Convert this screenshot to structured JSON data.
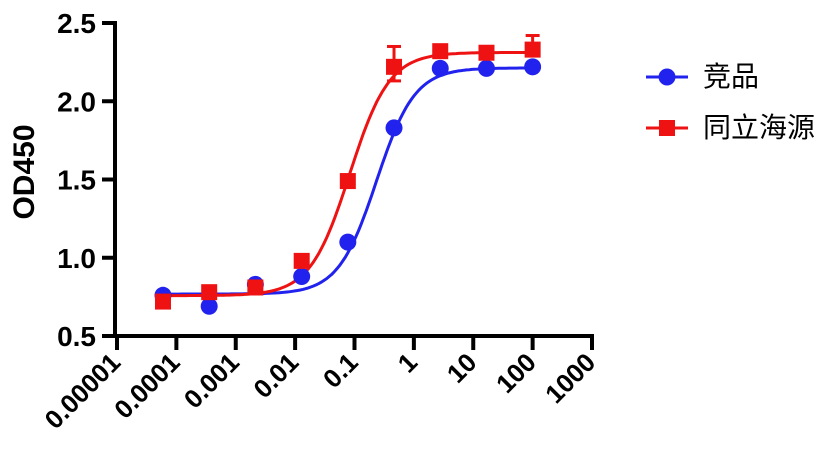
{
  "chart_data": {
    "type": "scatter",
    "title": "",
    "ylabel": "OD450",
    "xlabel": "",
    "x_scale": "log10",
    "xlim": [
      1e-05,
      1000
    ],
    "ylim": [
      0.5,
      2.5
    ],
    "grid": false,
    "legend_position": "right-outside",
    "x_tick_labels": [
      "0.00001",
      "0.0001",
      "0.001",
      "0.01",
      "0.1",
      "1",
      "10",
      "100",
      "1000"
    ],
    "x_tick_values": [
      1e-05,
      0.0001,
      0.001,
      0.01,
      0.1,
      1,
      10,
      100,
      1000
    ],
    "y_tick_labels": [
      "0.5",
      "1.0",
      "1.5",
      "2.0",
      "2.5"
    ],
    "y_tick_values": [
      0.5,
      1.0,
      1.5,
      2.0,
      2.5
    ],
    "x": [
      5.95e-05,
      0.000357,
      0.00214,
      0.0129,
      0.0772,
      0.463,
      2.78,
      16.7,
      100
    ],
    "series": [
      {
        "name": "竞品",
        "color": "#2222ee",
        "marker": "circle",
        "values": [
          0.76,
          0.69,
          0.83,
          0.88,
          1.1,
          1.83,
          2.21,
          2.21,
          2.22
        ],
        "err_hi": [
          0,
          0,
          0,
          0,
          0,
          0,
          0,
          0,
          0
        ],
        "err_lo": [
          0,
          0,
          0,
          0,
          0,
          0,
          0,
          0,
          0
        ],
        "fit": {
          "bottom": 0.768,
          "top": 2.213,
          "ec50": 0.235,
          "hill": 1.35
        }
      },
      {
        "name": "同立海源",
        "color": "#ee1212",
        "marker": "square",
        "values": [
          0.72,
          0.78,
          0.81,
          0.98,
          1.49,
          2.22,
          2.32,
          2.31,
          2.33
        ],
        "err_hi": [
          0,
          0,
          0,
          0,
          0,
          0.13,
          0,
          0,
          0.09
        ],
        "err_lo": [
          0,
          0,
          0,
          0,
          0,
          0.09,
          0,
          0,
          0
        ],
        "fit": {
          "bottom": 0.758,
          "top": 2.312,
          "ec50": 0.083,
          "hill": 1.3
        }
      }
    ]
  }
}
